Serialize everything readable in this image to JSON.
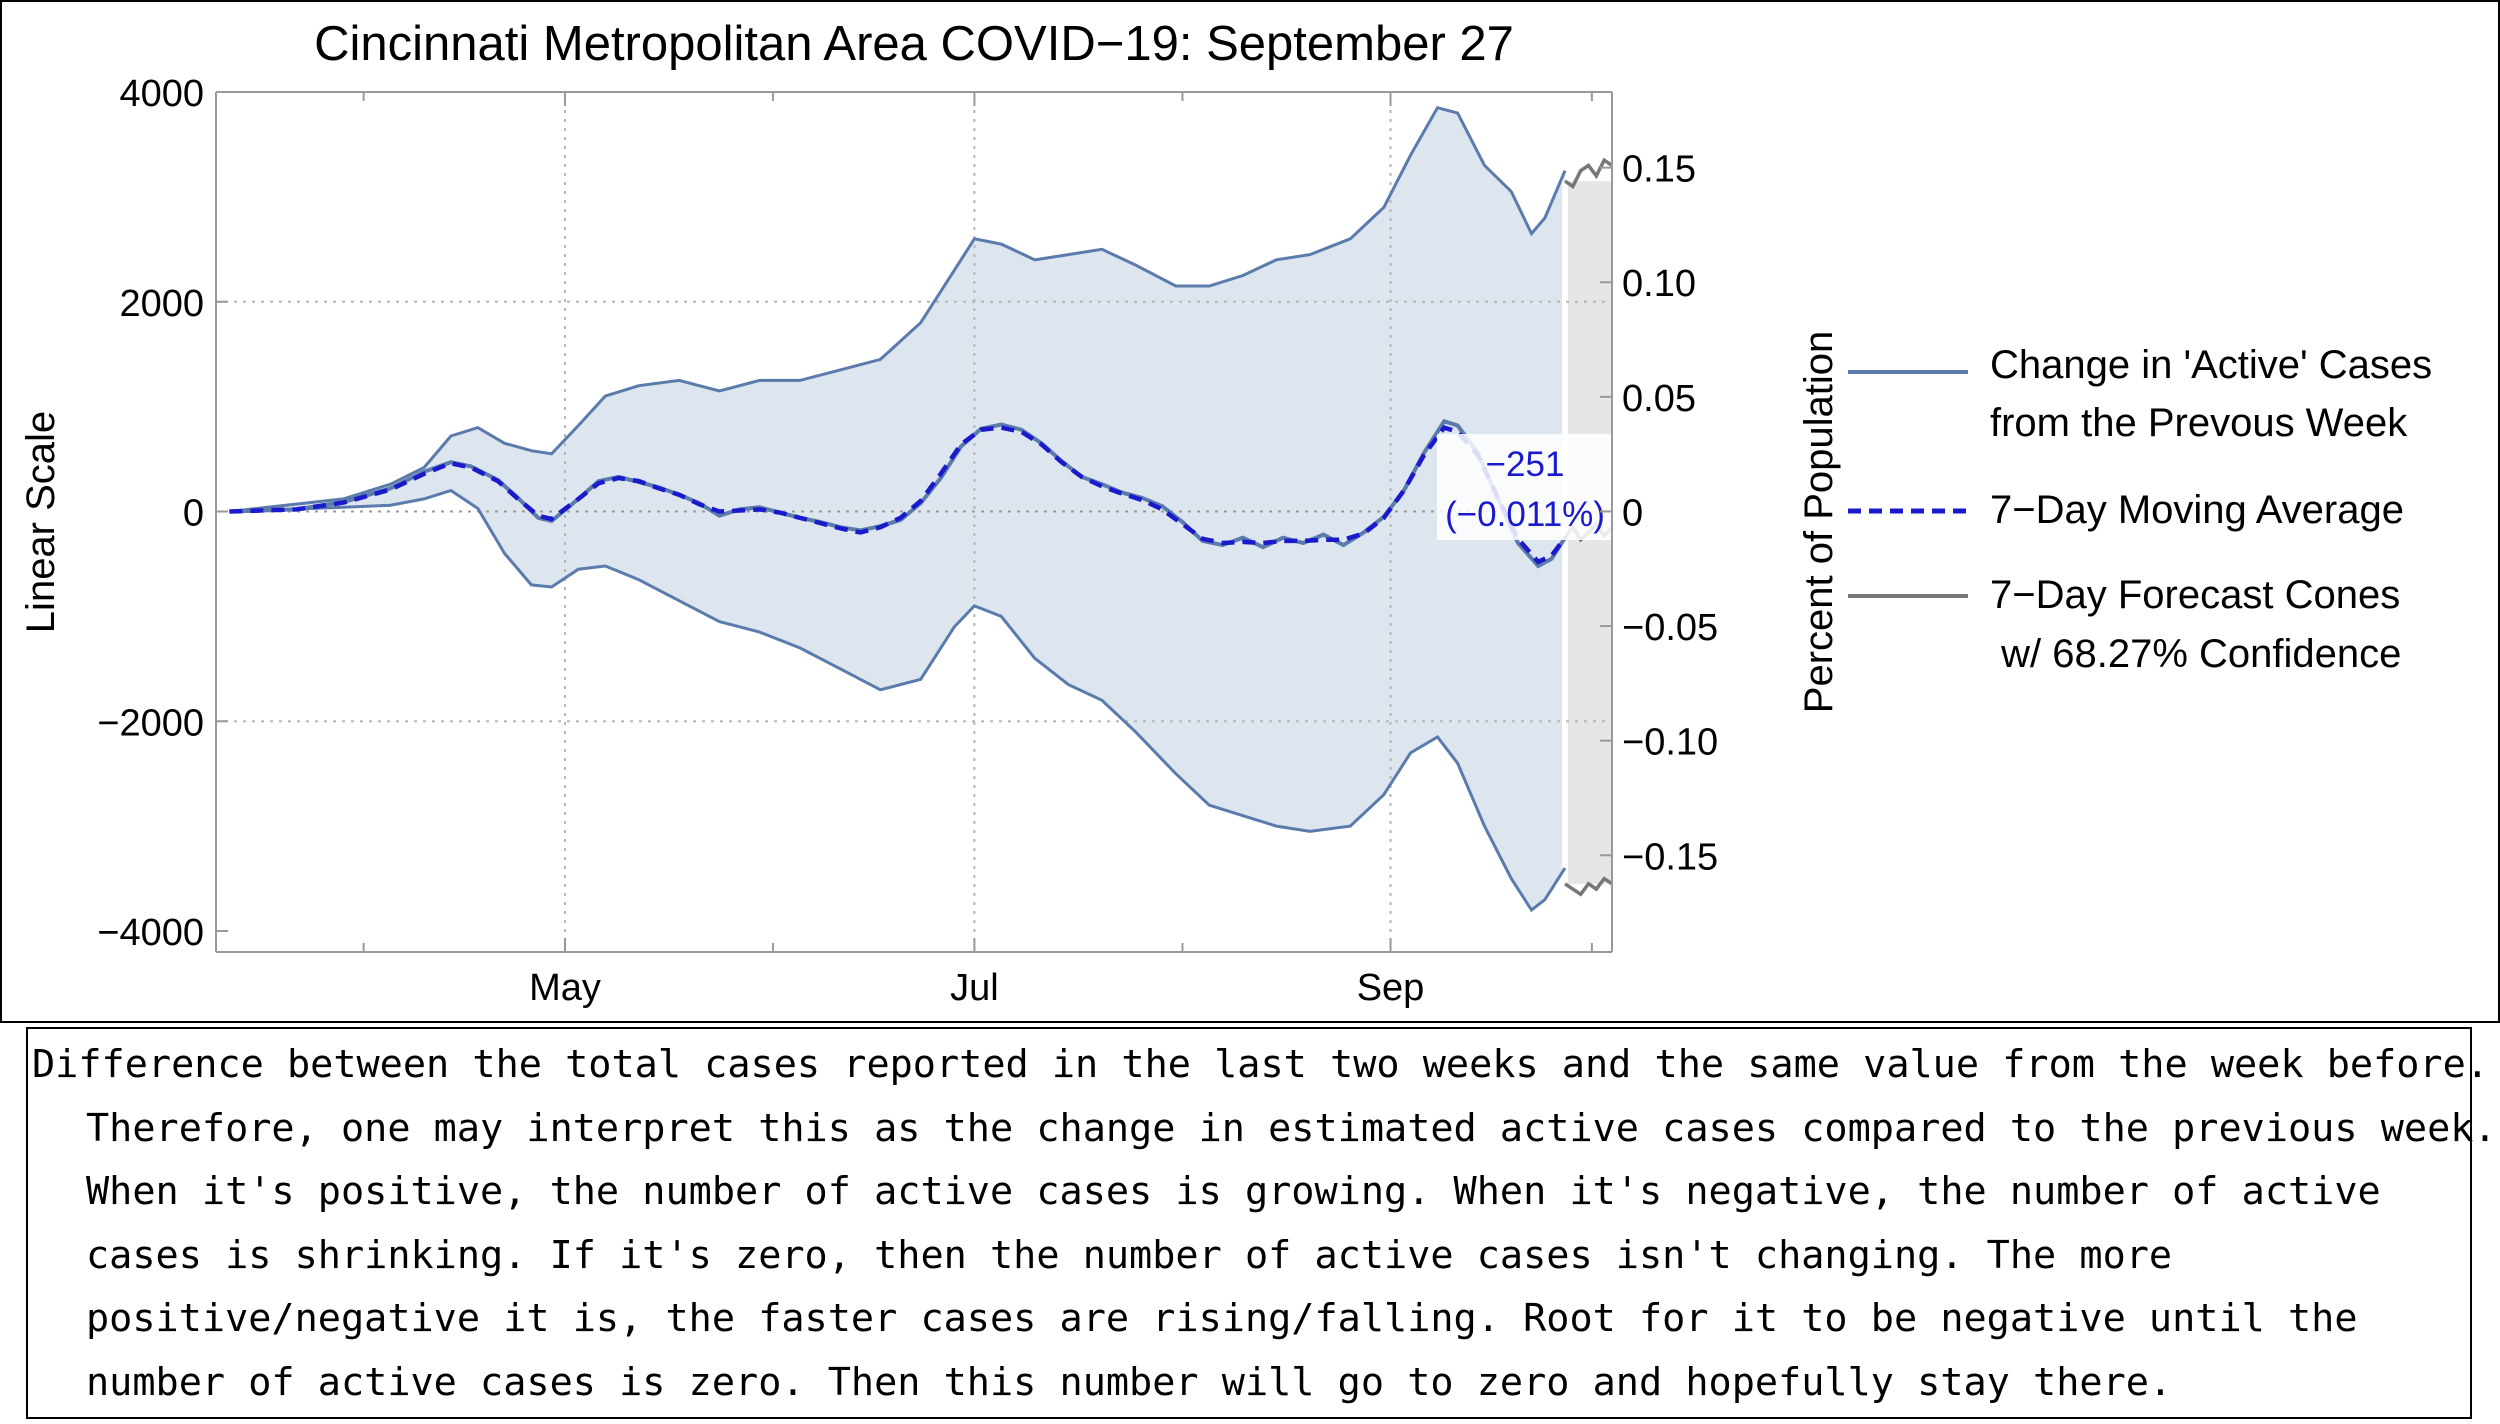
{
  "chart_data": {
    "type": "area",
    "title": "Cincinnati Metropolitan Area COVID−19: September 27",
    "ylabel": "Linear Scale",
    "y2label": "Percent of Population",
    "ylim": [
      -4200,
      4000
    ],
    "y2lim": [
      -0.1922,
      0.183
    ],
    "grid": true,
    "x_start": "2020-03-10",
    "x_end": "2020-10-04",
    "x_major_ticks": [
      {
        "date": "2020-05-01",
        "label": "May"
      },
      {
        "date": "2020-07-01",
        "label": "Jul"
      },
      {
        "date": "2020-09-01",
        "label": "Sep"
      }
    ],
    "x_minor_ticks": [
      "2020-04-01",
      "2020-06-01",
      "2020-08-01",
      "2020-10-01"
    ],
    "y_ticks": [
      {
        "value": 4000,
        "label": "4000"
      },
      {
        "value": 2000,
        "label": "2000"
      },
      {
        "value": 0,
        "label": "0"
      },
      {
        "value": -2000,
        "label": "−2000"
      },
      {
        "value": -4000,
        "label": "−4000"
      }
    ],
    "y2_ticks": [
      {
        "value": 0.15,
        "label": "0.15"
      },
      {
        "value": 0.1,
        "label": "0.10"
      },
      {
        "value": 0.05,
        "label": "0.05"
      },
      {
        "value": 0,
        "label": "0"
      },
      {
        "value": -0.05,
        "label": "−0.05"
      },
      {
        "value": -0.1,
        "label": "−0.10"
      },
      {
        "value": -0.15,
        "label": "−0.15"
      }
    ],
    "series": [
      {
        "name": "Change in 'Active' Cases from the Prevous Week",
        "kind": "line",
        "color": "#5a7bab",
        "points": [
          [
            "2020-03-12",
            0
          ],
          [
            "2020-03-22",
            20
          ],
          [
            "2020-03-29",
            90
          ],
          [
            "2020-04-05",
            220
          ],
          [
            "2020-04-10",
            380
          ],
          [
            "2020-04-14",
            470
          ],
          [
            "2020-04-17",
            430
          ],
          [
            "2020-04-21",
            300
          ],
          [
            "2020-04-24",
            130
          ],
          [
            "2020-04-27",
            -60
          ],
          [
            "2020-04-29",
            -90
          ],
          [
            "2020-05-03",
            120
          ],
          [
            "2020-05-06",
            290
          ],
          [
            "2020-05-09",
            330
          ],
          [
            "2020-05-12",
            280
          ],
          [
            "2020-05-15",
            230
          ],
          [
            "2020-05-18",
            160
          ],
          [
            "2020-05-21",
            80
          ],
          [
            "2020-05-24",
            -40
          ],
          [
            "2020-05-27",
            20
          ],
          [
            "2020-05-30",
            40
          ],
          [
            "2020-06-02",
            -10
          ],
          [
            "2020-06-05",
            -60
          ],
          [
            "2020-06-08",
            -100
          ],
          [
            "2020-06-11",
            -150
          ],
          [
            "2020-06-14",
            -180
          ],
          [
            "2020-06-17",
            -140
          ],
          [
            "2020-06-20",
            -80
          ],
          [
            "2020-06-23",
            80
          ],
          [
            "2020-06-26",
            320
          ],
          [
            "2020-06-29",
            620
          ],
          [
            "2020-07-02",
            790
          ],
          [
            "2020-07-05",
            830
          ],
          [
            "2020-07-08",
            780
          ],
          [
            "2020-07-11",
            650
          ],
          [
            "2020-07-14",
            480
          ],
          [
            "2020-07-17",
            330
          ],
          [
            "2020-07-20",
            260
          ],
          [
            "2020-07-23",
            180
          ],
          [
            "2020-07-26",
            130
          ],
          [
            "2020-07-29",
            50
          ],
          [
            "2020-08-01",
            -100
          ],
          [
            "2020-08-04",
            -280
          ],
          [
            "2020-08-07",
            -320
          ],
          [
            "2020-08-10",
            -250
          ],
          [
            "2020-08-13",
            -340
          ],
          [
            "2020-08-16",
            -250
          ],
          [
            "2020-08-19",
            -300
          ],
          [
            "2020-08-22",
            -220
          ],
          [
            "2020-08-25",
            -320
          ],
          [
            "2020-08-28",
            -200
          ],
          [
            "2020-08-31",
            -50
          ],
          [
            "2020-09-03",
            200
          ],
          [
            "2020-09-06",
            560
          ],
          [
            "2020-09-09",
            860
          ],
          [
            "2020-09-11",
            820
          ],
          [
            "2020-09-14",
            560
          ],
          [
            "2020-09-17",
            120
          ],
          [
            "2020-09-20",
            -300
          ],
          [
            "2020-09-23",
            -520
          ],
          [
            "2020-09-25",
            -450
          ],
          [
            "2020-09-27",
            -251
          ]
        ]
      },
      {
        "name": "7−Day Moving Average",
        "kind": "dashed",
        "color": "#1a1acc",
        "points": [
          [
            "2020-03-12",
            0
          ],
          [
            "2020-03-22",
            20
          ],
          [
            "2020-03-29",
            85
          ],
          [
            "2020-04-05",
            210
          ],
          [
            "2020-04-10",
            360
          ],
          [
            "2020-04-14",
            460
          ],
          [
            "2020-04-17",
            420
          ],
          [
            "2020-04-21",
            290
          ],
          [
            "2020-04-24",
            120
          ],
          [
            "2020-04-27",
            -40
          ],
          [
            "2020-04-29",
            -70
          ],
          [
            "2020-05-03",
            120
          ],
          [
            "2020-05-06",
            270
          ],
          [
            "2020-05-09",
            320
          ],
          [
            "2020-05-12",
            290
          ],
          [
            "2020-05-15",
            220
          ],
          [
            "2020-05-18",
            160
          ],
          [
            "2020-05-21",
            70
          ],
          [
            "2020-05-24",
            0
          ],
          [
            "2020-05-27",
            10
          ],
          [
            "2020-05-30",
            20
          ],
          [
            "2020-06-02",
            -10
          ],
          [
            "2020-06-05",
            -60
          ],
          [
            "2020-06-08",
            -110
          ],
          [
            "2020-06-11",
            -160
          ],
          [
            "2020-06-14",
            -200
          ],
          [
            "2020-06-17",
            -150
          ],
          [
            "2020-06-20",
            -60
          ],
          [
            "2020-06-23",
            100
          ],
          [
            "2020-06-26",
            360
          ],
          [
            "2020-06-29",
            640
          ],
          [
            "2020-07-02",
            780
          ],
          [
            "2020-07-05",
            800
          ],
          [
            "2020-07-08",
            760
          ],
          [
            "2020-07-11",
            640
          ],
          [
            "2020-07-14",
            470
          ],
          [
            "2020-07-17",
            330
          ],
          [
            "2020-07-20",
            240
          ],
          [
            "2020-07-23",
            170
          ],
          [
            "2020-07-26",
            110
          ],
          [
            "2020-07-29",
            20
          ],
          [
            "2020-08-01",
            -120
          ],
          [
            "2020-08-04",
            -260
          ],
          [
            "2020-08-07",
            -300
          ],
          [
            "2020-08-10",
            -290
          ],
          [
            "2020-08-13",
            -300
          ],
          [
            "2020-08-16",
            -280
          ],
          [
            "2020-08-19",
            -280
          ],
          [
            "2020-08-22",
            -270
          ],
          [
            "2020-08-25",
            -270
          ],
          [
            "2020-08-28",
            -210
          ],
          [
            "2020-08-31",
            -60
          ],
          [
            "2020-09-03",
            200
          ],
          [
            "2020-09-06",
            540
          ],
          [
            "2020-09-09",
            800
          ],
          [
            "2020-09-11",
            760
          ],
          [
            "2020-09-14",
            540
          ],
          [
            "2020-09-17",
            130
          ],
          [
            "2020-09-20",
            -260
          ],
          [
            "2020-09-23",
            -480
          ],
          [
            "2020-09-25",
            -420
          ],
          [
            "2020-09-27",
            -251
          ]
        ]
      },
      {
        "name": "Confidence band",
        "kind": "band",
        "color": "#5a7bab",
        "fill": "#dde5ef",
        "upper": [
          [
            "2020-03-12",
            0
          ],
          [
            "2020-03-29",
            120
          ],
          [
            "2020-04-05",
            260
          ],
          [
            "2020-04-10",
            420
          ],
          [
            "2020-04-14",
            720
          ],
          [
            "2020-04-18",
            800
          ],
          [
            "2020-04-22",
            650
          ],
          [
            "2020-04-26",
            580
          ],
          [
            "2020-04-29",
            550
          ],
          [
            "2020-05-03",
            820
          ],
          [
            "2020-05-07",
            1100
          ],
          [
            "2020-05-12",
            1200
          ],
          [
            "2020-05-18",
            1250
          ],
          [
            "2020-05-24",
            1150
          ],
          [
            "2020-05-30",
            1250
          ],
          [
            "2020-06-05",
            1250
          ],
          [
            "2020-06-11",
            1350
          ],
          [
            "2020-06-17",
            1450
          ],
          [
            "2020-06-23",
            1800
          ],
          [
            "2020-06-28",
            2300
          ],
          [
            "2020-07-01",
            2600
          ],
          [
            "2020-07-05",
            2550
          ],
          [
            "2020-07-10",
            2400
          ],
          [
            "2020-07-15",
            2450
          ],
          [
            "2020-07-20",
            2500
          ],
          [
            "2020-07-25",
            2350
          ],
          [
            "2020-07-31",
            2150
          ],
          [
            "2020-08-05",
            2150
          ],
          [
            "2020-08-10",
            2250
          ],
          [
            "2020-08-15",
            2400
          ],
          [
            "2020-08-20",
            2450
          ],
          [
            "2020-08-26",
            2600
          ],
          [
            "2020-08-31",
            2900
          ],
          [
            "2020-09-04",
            3400
          ],
          [
            "2020-09-08",
            3850
          ],
          [
            "2020-09-11",
            3800
          ],
          [
            "2020-09-15",
            3300
          ],
          [
            "2020-09-19",
            3050
          ],
          [
            "2020-09-22",
            2650
          ],
          [
            "2020-09-24",
            2800
          ],
          [
            "2020-09-27",
            3250
          ]
        ],
        "lower": [
          [
            "2020-03-12",
            0
          ],
          [
            "2020-03-29",
            40
          ],
          [
            "2020-04-05",
            60
          ],
          [
            "2020-04-10",
            120
          ],
          [
            "2020-04-14",
            200
          ],
          [
            "2020-04-18",
            30
          ],
          [
            "2020-04-22",
            -400
          ],
          [
            "2020-04-26",
            -700
          ],
          [
            "2020-04-29",
            -720
          ],
          [
            "2020-05-03",
            -550
          ],
          [
            "2020-05-07",
            -520
          ],
          [
            "2020-05-12",
            -650
          ],
          [
            "2020-05-18",
            -850
          ],
          [
            "2020-05-24",
            -1050
          ],
          [
            "2020-05-30",
            -1150
          ],
          [
            "2020-06-05",
            -1300
          ],
          [
            "2020-06-11",
            -1500
          ],
          [
            "2020-06-17",
            -1700
          ],
          [
            "2020-06-23",
            -1600
          ],
          [
            "2020-06-28",
            -1100
          ],
          [
            "2020-07-01",
            -900
          ],
          [
            "2020-07-05",
            -1000
          ],
          [
            "2020-07-10",
            -1400
          ],
          [
            "2020-07-15",
            -1650
          ],
          [
            "2020-07-20",
            -1800
          ],
          [
            "2020-07-25",
            -2100
          ],
          [
            "2020-07-31",
            -2500
          ],
          [
            "2020-08-05",
            -2800
          ],
          [
            "2020-08-10",
            -2900
          ],
          [
            "2020-08-15",
            -3000
          ],
          [
            "2020-08-20",
            -3050
          ],
          [
            "2020-08-26",
            -3000
          ],
          [
            "2020-08-31",
            -2700
          ],
          [
            "2020-09-04",
            -2300
          ],
          [
            "2020-09-08",
            -2150
          ],
          [
            "2020-09-11",
            -2400
          ],
          [
            "2020-09-15",
            -3000
          ],
          [
            "2020-09-19",
            -3500
          ],
          [
            "2020-09-22",
            -3800
          ],
          [
            "2020-09-24",
            -3700
          ],
          [
            "2020-09-27",
            -3400
          ]
        ]
      },
      {
        "name": "7−Day Forecast Cones",
        "kind": "forecast",
        "color": "#777777",
        "fill": "#e6e6e6",
        "start": "2020-09-27",
        "end": "2020-10-04",
        "upper": [
          3150,
          3100,
          3250,
          3300,
          3200,
          3350,
          3300
        ],
        "middle": [
          -251,
          -150,
          -270,
          -200,
          -120,
          -230,
          -150
        ],
        "lower": [
          -3550,
          -3600,
          -3650,
          -3550,
          -3600,
          -3500,
          -3550
        ]
      }
    ],
    "annotations": [
      {
        "date": "2020-09-27",
        "value": -251,
        "text_value": "−251",
        "text_percent": "(−0.011%)"
      }
    ],
    "legend": {
      "placement": "right",
      "entries": [
        {
          "line1": "Change in 'Active' Cases",
          "line2": "from the Prevous Week",
          "style": "solid",
          "color": "#5a7bab"
        },
        {
          "line1": "7−Day Moving Average",
          "line2": "",
          "style": "dashed",
          "color": "#1a1acc"
        },
        {
          "line1": "7−Day Forecast Cones",
          "line2": " w/ 68.27% Confidence",
          "style": "solid",
          "color": "#777777"
        }
      ]
    }
  },
  "caption": "Difference between the total cases reported in the last two weeks and the same value from the week before. Therefore, one may interpret this as the change in estimated active cases compared to the previous week. When it's positive, the number of active cases is growing. When it's negative, the number of active cases is shrinking. If it's zero, then the number of active cases isn't changing. The more positive/negative it is, the faster cases are rising/falling. Root for it to be negative until the number of active cases is zero. Then this number will go to zero and hopefully stay there."
}
